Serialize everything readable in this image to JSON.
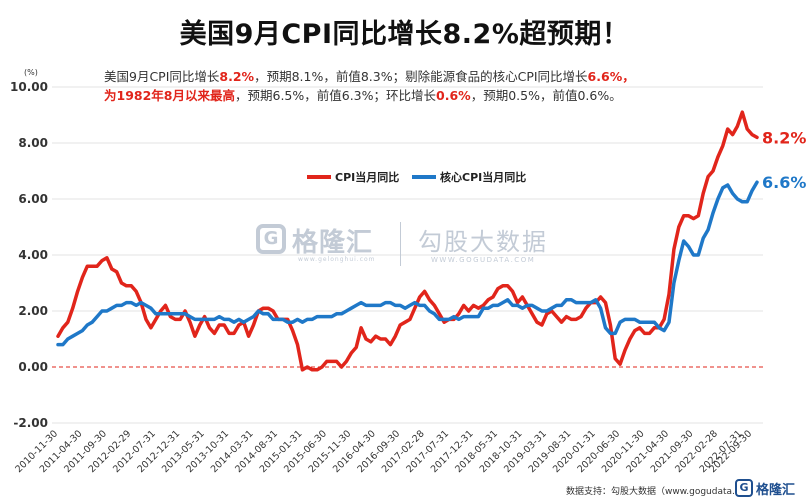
{
  "header": {
    "title": "美国9月CPI同比增长8.2%超预期！"
  },
  "notes": {
    "line1": [
      {
        "text": "美国9月CPI同比增长",
        "hl": false
      },
      {
        "text": "8.2%",
        "hl": true
      },
      {
        "text": "，预期8.1%，前值8.3%；剔除能源食品的核心CPI同比增长",
        "hl": false
      },
      {
        "text": "6.6%，",
        "hl": true
      }
    ],
    "line2": [
      {
        "text": "为1982年8月以来最高",
        "hl": true
      },
      {
        "text": "，预期6.5%，前值6.3%；环比增长",
        "hl": false
      },
      {
        "text": "0.6%",
        "hl": true
      },
      {
        "text": "，预期0.5%，前值0.6%。",
        "hl": false
      }
    ]
  },
  "watermark": {
    "brand": "格隆汇",
    "brand_url": "www.gelonghui.com",
    "gogu": "勾股大数据",
    "gogu_url": "WWW.GOGUDATA.COM",
    "logo_letter": "G"
  },
  "footer": {
    "source": "数据支持：勾股大数据（www.gogudata.com）",
    "logo_text": "格隆汇",
    "logo_letter": "G"
  },
  "colors": {
    "cpi": "#e1251b",
    "core": "#1f78c8",
    "grid": "#e3e3e3",
    "zero": "#e1251b",
    "axis_text": "#333333"
  },
  "chart_data": {
    "type": "line",
    "title": "",
    "unit": "(%)",
    "ylim": [
      -2,
      10
    ],
    "yticks": [
      "-2.00",
      "0.00",
      "2.00",
      "4.00",
      "6.00",
      "8.00",
      "10.00"
    ],
    "ytick_values": [
      -2,
      0,
      2,
      4,
      6,
      8,
      10
    ],
    "grid": true,
    "legend_position": "center-top",
    "x_tick_labels": [
      "2010-11-30",
      "2011-04-30",
      "2011-09-30",
      "2012-02-29",
      "2012-07-31",
      "2012-12-31",
      "2013-05-31",
      "2013-10-31",
      "2014-03-31",
      "2014-08-31",
      "2015-01-31",
      "2015-06-30",
      "2015-11-30",
      "2016-04-30",
      "2016-09-30",
      "2017-02-28",
      "2017-07-31",
      "2017-12-31",
      "2018-05-31",
      "2018-10-31",
      "2019-03-31",
      "2019-08-31",
      "2020-01-31",
      "2020-06-30",
      "2020-11-30",
      "2021-04-30",
      "2021-09-30",
      "2022-02-28",
      "2022-07-31",
      "2022-09-30"
    ],
    "x_tick_index": [
      0,
      5,
      10,
      15,
      20,
      25,
      30,
      35,
      40,
      45,
      50,
      55,
      60,
      65,
      70,
      75,
      80,
      85,
      90,
      95,
      100,
      105,
      110,
      115,
      120,
      125,
      130,
      135,
      140,
      142
    ],
    "series": [
      {
        "name": "CPI当月同比",
        "end_label": "8.2%",
        "values": [
          1.1,
          1.4,
          1.6,
          2.1,
          2.7,
          3.2,
          3.6,
          3.6,
          3.6,
          3.8,
          3.9,
          3.5,
          3.4,
          3.0,
          2.9,
          2.9,
          2.7,
          2.3,
          1.7,
          1.4,
          1.7,
          2.0,
          2.2,
          1.8,
          1.7,
          1.7,
          2.0,
          1.6,
          1.1,
          1.5,
          1.8,
          1.4,
          1.2,
          1.5,
          1.5,
          1.2,
          1.2,
          1.5,
          1.6,
          1.1,
          1.5,
          2.0,
          2.1,
          2.1,
          2.0,
          1.7,
          1.7,
          1.7,
          1.3,
          0.8,
          -0.1,
          0.0,
          -0.1,
          -0.1,
          0.0,
          0.2,
          0.2,
          0.2,
          0.0,
          0.2,
          0.5,
          0.7,
          1.4,
          1.0,
          0.9,
          1.1,
          1.0,
          1.0,
          0.8,
          1.1,
          1.5,
          1.6,
          1.7,
          2.1,
          2.5,
          2.7,
          2.4,
          2.2,
          1.9,
          1.6,
          1.7,
          1.7,
          1.9,
          2.2,
          2.0,
          2.2,
          2.1,
          2.2,
          2.4,
          2.5,
          2.8,
          2.9,
          2.9,
          2.7,
          2.3,
          2.5,
          2.2,
          1.9,
          1.6,
          1.5,
          1.9,
          2.0,
          1.8,
          1.6,
          1.8,
          1.7,
          1.7,
          1.8,
          2.1,
          2.3,
          2.3,
          2.5,
          2.3,
          1.5,
          0.3,
          0.1,
          0.6,
          1.0,
          1.3,
          1.4,
          1.2,
          1.2,
          1.4,
          1.4,
          1.7,
          2.6,
          4.2,
          5.0,
          5.4,
          5.4,
          5.3,
          5.4,
          6.2,
          6.8,
          7.0,
          7.5,
          7.9,
          8.5,
          8.3,
          8.6,
          9.1,
          8.5,
          8.3,
          8.2
        ]
      },
      {
        "name": "核心CPI当月同比",
        "end_label": "6.6%",
        "values": [
          0.8,
          0.8,
          1.0,
          1.1,
          1.2,
          1.3,
          1.5,
          1.6,
          1.8,
          2.0,
          2.0,
          2.1,
          2.2,
          2.2,
          2.3,
          2.3,
          2.2,
          2.3,
          2.2,
          2.1,
          1.9,
          1.9,
          1.9,
          1.9,
          1.9,
          1.9,
          1.9,
          1.8,
          1.7,
          1.7,
          1.7,
          1.7,
          1.7,
          1.8,
          1.7,
          1.7,
          1.6,
          1.7,
          1.6,
          1.7,
          1.8,
          2.0,
          1.9,
          1.9,
          1.7,
          1.7,
          1.7,
          1.6,
          1.6,
          1.7,
          1.6,
          1.7,
          1.7,
          1.8,
          1.8,
          1.8,
          1.8,
          1.9,
          1.9,
          2.0,
          2.1,
          2.2,
          2.3,
          2.2,
          2.2,
          2.2,
          2.2,
          2.3,
          2.3,
          2.2,
          2.2,
          2.1,
          2.2,
          2.3,
          2.2,
          2.2,
          2.0,
          1.9,
          1.7,
          1.7,
          1.7,
          1.8,
          1.7,
          1.8,
          1.8,
          1.8,
          1.8,
          2.1,
          2.1,
          2.2,
          2.2,
          2.3,
          2.4,
          2.2,
          2.2,
          2.1,
          2.2,
          2.2,
          2.1,
          2.0,
          2.0,
          2.1,
          2.2,
          2.2,
          2.4,
          2.4,
          2.3,
          2.3,
          2.3,
          2.3,
          2.4,
          2.1,
          1.4,
          1.2,
          1.2,
          1.6,
          1.7,
          1.7,
          1.7,
          1.6,
          1.6,
          1.6,
          1.6,
          1.4,
          1.3,
          1.6,
          3.0,
          3.8,
          4.5,
          4.3,
          4.0,
          4.0,
          4.6,
          4.9,
          5.5,
          6.0,
          6.4,
          6.5,
          6.2,
          6.0,
          5.9,
          5.9,
          6.3,
          6.6
        ]
      }
    ]
  }
}
